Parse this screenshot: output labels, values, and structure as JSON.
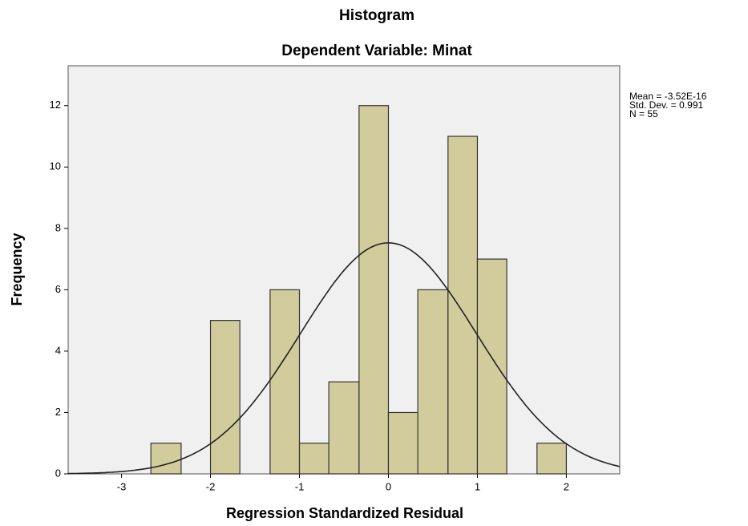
{
  "chart_data": {
    "type": "histogram",
    "title": "Histogram",
    "subtitle": "Dependent Variable: Minat",
    "x_label": "Regression Standardized Residual",
    "y_label": "Frequency",
    "bins": [
      -2.67,
      -2.33,
      -2,
      -1.67,
      -1.33,
      -1,
      -0.67,
      -0.33,
      0,
      0.33,
      0.67,
      1,
      1.33,
      1.67,
      2
    ],
    "values": [
      1,
      0,
      5,
      0,
      6,
      1,
      3,
      12,
      2,
      6,
      11,
      7,
      0,
      1
    ],
    "color": "#d2cc9c",
    "xlim": [
      -3.6,
      2.6
    ],
    "xticks": [
      -3,
      -2,
      -1,
      0,
      1,
      2
    ],
    "ylim": [
      0,
      13.3
    ],
    "yticks": [
      0,
      2,
      4,
      6,
      8,
      10,
      12
    ],
    "stats_text": [
      "Mean = -3.52E-16",
      "Std. Dev. = 0.991",
      "N = 55"
    ],
    "normal_curve": {
      "mean": -3.52e-16,
      "sd": 0.991,
      "n": 55
    }
  }
}
